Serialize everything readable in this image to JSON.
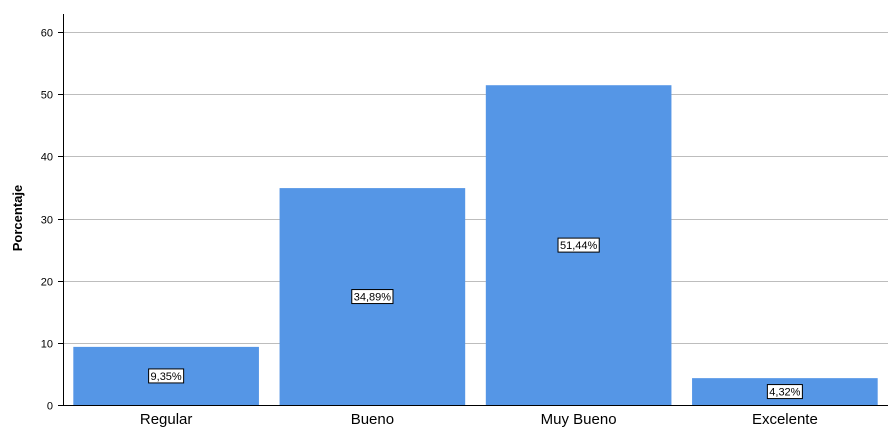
{
  "chart_data": {
    "type": "bar",
    "ylabel": "Porcentaje",
    "xlabel": "",
    "ylim": [
      0,
      60
    ],
    "yticks": [
      0,
      10,
      20,
      30,
      40,
      50,
      60
    ],
    "categories": [
      "Regular",
      "Bueno",
      "Muy Bueno",
      "Excelente"
    ],
    "values": [
      9.35,
      34.89,
      51.44,
      4.32
    ],
    "data_labels": [
      "9,35%",
      "34,89%",
      "51,44%",
      "4,32%"
    ],
    "grid": true,
    "bar_color": "#5596e6",
    "grid_color": "#bdbdbd"
  }
}
